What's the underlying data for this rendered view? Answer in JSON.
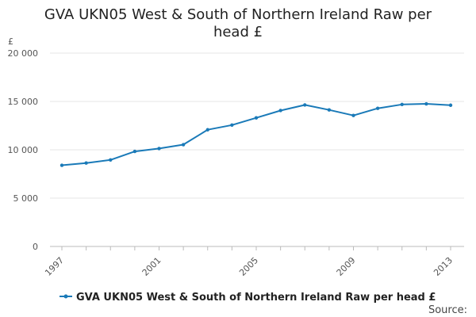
{
  "chart_data": {
    "type": "line",
    "title": "GVA UKN05 West & South of Northern Ireland Raw per head £",
    "title_lines": [
      "GVA UKN05 West & South of Northern Ireland Raw per",
      "head £"
    ],
    "y_unit": "£",
    "x": [
      1997,
      1998,
      1999,
      2000,
      2001,
      2002,
      2003,
      2004,
      2005,
      2006,
      2007,
      2008,
      2009,
      2010,
      2011,
      2012,
      2013
    ],
    "series": [
      {
        "name": "GVA UKN05 West & South of Northern Ireland Raw per head £",
        "values": [
          8400,
          8630,
          8950,
          9830,
          10130,
          10530,
          12070,
          12560,
          13300,
          14060,
          14640,
          14120,
          13550,
          14290,
          14690,
          14750,
          14610
        ],
        "color": "#1a7ab8"
      }
    ],
    "x_ticks": [
      "1997",
      "2001",
      "2005",
      "2009",
      "2013"
    ],
    "y_ticks": [
      "0",
      "5 000",
      "10 000",
      "15 000",
      "20 000"
    ],
    "y_tick_values": [
      0,
      5000,
      10000,
      15000,
      20000
    ],
    "ylim": [
      0,
      20000
    ],
    "xlim": [
      1997,
      2013
    ],
    "grid": true,
    "legend_position": "bottom-left",
    "legend_label": "GVA UKN05 West & South of Northern Ireland Raw per head £",
    "source_label": "Source:"
  }
}
